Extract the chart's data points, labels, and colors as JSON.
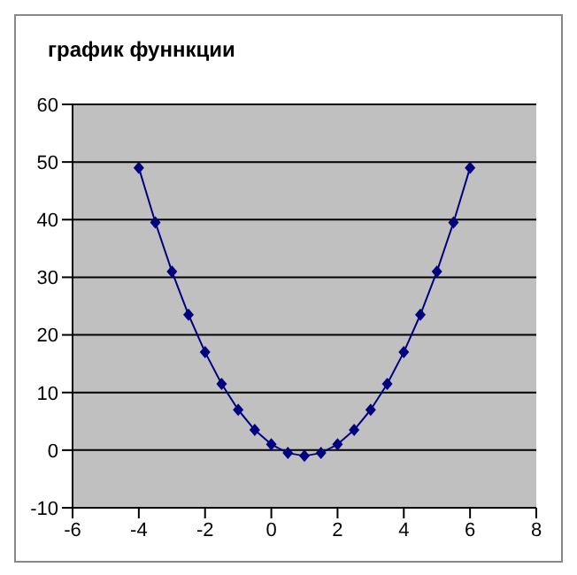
{
  "chart_data": {
    "type": "line",
    "title": "график фуннкции",
    "x": [
      -4,
      -3.5,
      -3,
      -2.5,
      -2,
      -1.5,
      -1,
      -0.5,
      0,
      0.5,
      1,
      1.5,
      2,
      2.5,
      3,
      3.5,
      4,
      4.5,
      5,
      5.5,
      6
    ],
    "series": [
      {
        "color": "#000080",
        "values": [
          49,
          39.5,
          31,
          23.5,
          17,
          11.5,
          7,
          3.5,
          1,
          -0.5,
          -1,
          -0.5,
          1,
          3.5,
          7,
          11.5,
          17,
          23.5,
          31,
          39.5,
          49
        ]
      }
    ],
    "xlim": [
      -6,
      8
    ],
    "xticks": [
      -6,
      -4,
      -2,
      0,
      2,
      4,
      6,
      8
    ],
    "ylim": [
      -10,
      60
    ],
    "yticks": [
      -10,
      0,
      10,
      20,
      30,
      40,
      50,
      60
    ],
    "grid": "y",
    "marker": "diamond",
    "line_style": "solid"
  }
}
